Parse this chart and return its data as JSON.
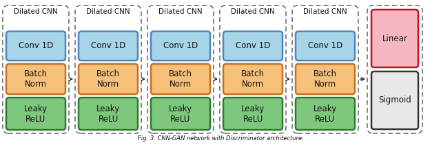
{
  "fig_width": 6.4,
  "fig_height": 2.11,
  "dpi": 100,
  "background_color": "#ffffff",
  "caption": "Fig. 3. CNN-GAN network with Discriminator architecture.",
  "n_blocks": 5,
  "block_label": "Dilated CNN",
  "layer_labels": [
    "Conv 1D",
    "Batch\nNorm",
    "Leaky\nReLU"
  ],
  "conv_color": "#a8d4e8",
  "conv_edge_color": "#4a86c0",
  "batch_color": "#f5c07a",
  "batch_edge_color": "#c87020",
  "relu_color": "#7ec87e",
  "relu_edge_color": "#2e7a2e",
  "linear_color": "#f5b8c0",
  "linear_edge_color": "#c01020",
  "sigmoid_color": "#e8e8e8",
  "sigmoid_edge_color": "#333333",
  "outer_box_color": "#555555",
  "arrow_color": "#222222",
  "text_color": "#111111",
  "block_title_fontsize": 7.5,
  "layer_fontsize": 8.5,
  "caption_fontsize": 6.0,
  "final_labels": [
    "Linear",
    "Sigmoid"
  ]
}
